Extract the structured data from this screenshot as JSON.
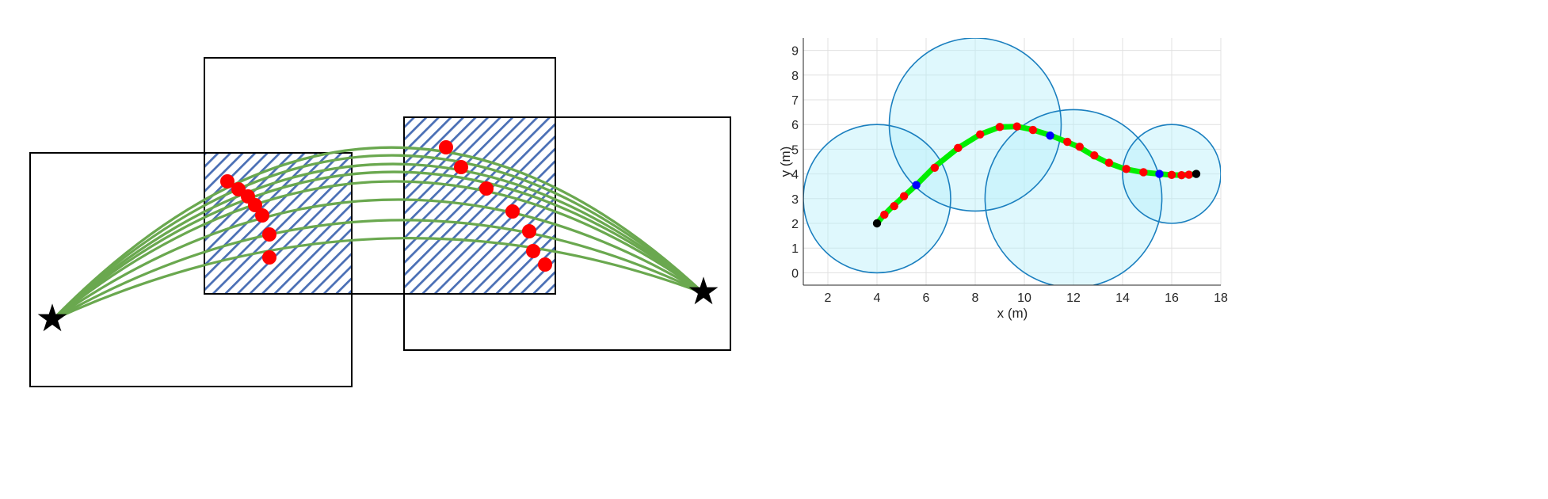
{
  "left_diagram": {
    "star_glyph": "★",
    "colors": {
      "box_stroke": "#000000",
      "hatch": "#4a6fb5",
      "path": "#6aa84f",
      "waypoint": "#ff0000",
      "star": "#000000"
    }
  },
  "chart_data": {
    "type": "scatter",
    "xlabel": "x (m)",
    "ylabel": "y (m)",
    "xlim": [
      1,
      18
    ],
    "ylim": [
      -0.5,
      9.5
    ],
    "xticks": [
      2,
      4,
      6,
      8,
      10,
      12,
      14,
      16,
      18
    ],
    "yticks": [
      0,
      1,
      2,
      3,
      4,
      5,
      6,
      7,
      8,
      9
    ],
    "grid": true,
    "colors": {
      "circle_fill": "#b8f0fb",
      "circle_stroke": "#1a7fbf",
      "trajectory": "#00ee00",
      "waypoint": "#ff0000",
      "transition": "#0000ff",
      "endpoint": "#000000"
    },
    "circles": [
      {
        "cx": 4,
        "cy": 3,
        "r": 3
      },
      {
        "cx": 8,
        "cy": 6,
        "r": 3.5
      },
      {
        "cx": 12,
        "cy": 3,
        "r": 3.6
      },
      {
        "cx": 16,
        "cy": 4,
        "r": 2
      }
    ],
    "trajectory": {
      "x": [
        4,
        4.25,
        4.6,
        5.1,
        5.6,
        6.3,
        7.3,
        8.2,
        9.0,
        9.7,
        10.3,
        11.1,
        11.6,
        12.2,
        12.8,
        13.4,
        14.1,
        14.8,
        15.5,
        16.0,
        16.4,
        16.7,
        17
      ],
      "y": [
        2,
        2.3,
        2.65,
        3.1,
        3.55,
        4.25,
        5.05,
        5.6,
        5.9,
        5.92,
        5.8,
        5.55,
        5.35,
        5.1,
        4.75,
        4.45,
        4.2,
        4.07,
        4.0,
        3.96,
        3.95,
        3.97,
        4.0
      ]
    },
    "waypoints": {
      "x": [
        4.3,
        4.7,
        5.1,
        6.35,
        7.3,
        8.2,
        9.0,
        9.7,
        10.35,
        11.75,
        12.25,
        12.85,
        13.45,
        14.15,
        14.85,
        16.0,
        16.4,
        16.7
      ],
      "y": [
        2.35,
        2.7,
        3.1,
        4.25,
        5.05,
        5.6,
        5.9,
        5.92,
        5.78,
        5.3,
        5.1,
        4.75,
        4.45,
        4.2,
        4.07,
        3.96,
        3.95,
        3.97
      ]
    },
    "transitions": {
      "x": [
        5.6,
        11.05,
        15.5
      ],
      "y": [
        3.55,
        5.55,
        4.0
      ]
    },
    "endpoints": {
      "x": [
        4,
        17
      ],
      "y": [
        2,
        4
      ]
    }
  }
}
